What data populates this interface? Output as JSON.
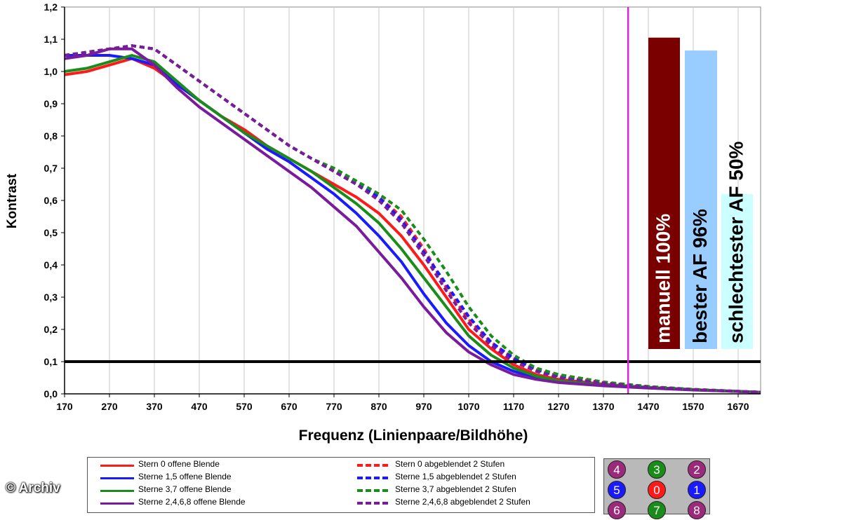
{
  "chart_data": {
    "type": "line",
    "xlabel": "Frequenz (Linienpaare/Bildhöhe)",
    "ylabel": "Kontrast",
    "xlim": [
      170,
      1720
    ],
    "ylim": [
      0,
      1.2
    ],
    "x_ticks": [
      "170",
      "270",
      "370",
      "470",
      "570",
      "670",
      "770",
      "870",
      "970",
      "1070",
      "1170",
      "1270",
      "1370",
      "1470",
      "1570",
      "1670"
    ],
    "y_ticks": [
      "0,0",
      "0,1",
      "0,2",
      "0,3",
      "0,4",
      "0,5",
      "0,6",
      "0,7",
      "0,8",
      "0,9",
      "1,0",
      "1,1",
      "1,2"
    ],
    "grid": "vertical",
    "threshold": {
      "y": 0.1,
      "color": "#000000"
    },
    "marker_line": {
      "x": 1425,
      "color": "#dd22dd"
    },
    "series": [
      {
        "name": "Stern 0 offene Blende",
        "color": "#ff1a1a",
        "style": "solid",
        "points": [
          [
            170,
            0.99
          ],
          [
            220,
            1.0
          ],
          [
            270,
            1.02
          ],
          [
            320,
            1.04
          ],
          [
            370,
            1.01
          ],
          [
            420,
            0.96
          ],
          [
            470,
            0.91
          ],
          [
            520,
            0.86
          ],
          [
            570,
            0.82
          ],
          [
            620,
            0.77
          ],
          [
            670,
            0.73
          ],
          [
            720,
            0.69
          ],
          [
            770,
            0.65
          ],
          [
            820,
            0.61
          ],
          [
            870,
            0.56
          ],
          [
            920,
            0.49
          ],
          [
            970,
            0.4
          ],
          [
            1020,
            0.3
          ],
          [
            1070,
            0.2
          ],
          [
            1120,
            0.14
          ],
          [
            1170,
            0.09
          ],
          [
            1220,
            0.06
          ],
          [
            1270,
            0.045
          ],
          [
            1370,
            0.03
          ],
          [
            1470,
            0.02
          ],
          [
            1570,
            0.013
          ],
          [
            1720,
            0.005
          ]
        ]
      },
      {
        "name": "Sterne 1,5 offene Blende",
        "color": "#1a1aff",
        "style": "solid",
        "points": [
          [
            170,
            1.05
          ],
          [
            220,
            1.05
          ],
          [
            270,
            1.05
          ],
          [
            320,
            1.04
          ],
          [
            370,
            1.02
          ],
          [
            420,
            0.96
          ],
          [
            470,
            0.91
          ],
          [
            520,
            0.86
          ],
          [
            570,
            0.81
          ],
          [
            620,
            0.76
          ],
          [
            670,
            0.72
          ],
          [
            720,
            0.67
          ],
          [
            770,
            0.62
          ],
          [
            820,
            0.56
          ],
          [
            870,
            0.49
          ],
          [
            920,
            0.41
          ],
          [
            970,
            0.31
          ],
          [
            1020,
            0.22
          ],
          [
            1070,
            0.15
          ],
          [
            1120,
            0.1
          ],
          [
            1170,
            0.07
          ],
          [
            1220,
            0.05
          ],
          [
            1270,
            0.04
          ],
          [
            1370,
            0.028
          ],
          [
            1470,
            0.02
          ],
          [
            1570,
            0.013
          ],
          [
            1720,
            0.005
          ]
        ]
      },
      {
        "name": "Sterne 3,7 offene Blende",
        "color": "#1a8c1a",
        "style": "solid",
        "points": [
          [
            170,
            1.0
          ],
          [
            220,
            1.01
          ],
          [
            270,
            1.03
          ],
          [
            320,
            1.05
          ],
          [
            370,
            1.03
          ],
          [
            420,
            0.97
          ],
          [
            470,
            0.91
          ],
          [
            520,
            0.86
          ],
          [
            570,
            0.81
          ],
          [
            620,
            0.77
          ],
          [
            670,
            0.73
          ],
          [
            720,
            0.69
          ],
          [
            770,
            0.64
          ],
          [
            820,
            0.59
          ],
          [
            870,
            0.53
          ],
          [
            920,
            0.45
          ],
          [
            970,
            0.36
          ],
          [
            1020,
            0.27
          ],
          [
            1070,
            0.18
          ],
          [
            1120,
            0.12
          ],
          [
            1170,
            0.08
          ],
          [
            1220,
            0.055
          ],
          [
            1270,
            0.04
          ],
          [
            1370,
            0.028
          ],
          [
            1470,
            0.02
          ],
          [
            1570,
            0.013
          ],
          [
            1720,
            0.005
          ]
        ]
      },
      {
        "name": "Sterne 2,4,6,8 offene Blende",
        "color": "#7a1a9c",
        "style": "solid",
        "points": [
          [
            170,
            1.04
          ],
          [
            220,
            1.05
          ],
          [
            270,
            1.07
          ],
          [
            320,
            1.07
          ],
          [
            370,
            1.02
          ],
          [
            420,
            0.95
          ],
          [
            470,
            0.89
          ],
          [
            520,
            0.84
          ],
          [
            570,
            0.79
          ],
          [
            620,
            0.74
          ],
          [
            670,
            0.69
          ],
          [
            720,
            0.64
          ],
          [
            770,
            0.58
          ],
          [
            820,
            0.52
          ],
          [
            870,
            0.44
          ],
          [
            920,
            0.36
          ],
          [
            970,
            0.27
          ],
          [
            1020,
            0.19
          ],
          [
            1070,
            0.13
          ],
          [
            1120,
            0.09
          ],
          [
            1170,
            0.06
          ],
          [
            1220,
            0.045
          ],
          [
            1270,
            0.035
          ],
          [
            1370,
            0.025
          ],
          [
            1470,
            0.018
          ],
          [
            1570,
            0.012
          ],
          [
            1720,
            0.005
          ]
        ]
      },
      {
        "name": "Stern 0 abgeblendet 2 Stufen",
        "color": "#ff1a1a",
        "style": "dashed",
        "points": [
          [
            170,
            1.05
          ],
          [
            220,
            1.06
          ],
          [
            270,
            1.07
          ],
          [
            320,
            1.08
          ],
          [
            370,
            1.07
          ],
          [
            420,
            1.02
          ],
          [
            470,
            0.97
          ],
          [
            520,
            0.92
          ],
          [
            570,
            0.87
          ],
          [
            620,
            0.82
          ],
          [
            670,
            0.77
          ],
          [
            720,
            0.73
          ],
          [
            770,
            0.69
          ],
          [
            820,
            0.65
          ],
          [
            870,
            0.61
          ],
          [
            920,
            0.55
          ],
          [
            970,
            0.45
          ],
          [
            1020,
            0.33
          ],
          [
            1070,
            0.23
          ],
          [
            1120,
            0.16
          ],
          [
            1170,
            0.11
          ],
          [
            1220,
            0.075
          ],
          [
            1270,
            0.055
          ],
          [
            1370,
            0.035
          ],
          [
            1470,
            0.022
          ],
          [
            1570,
            0.014
          ],
          [
            1720,
            0.005
          ]
        ]
      },
      {
        "name": "Sterne 1,5 abgeblendet 2 Stufen",
        "color": "#1a1aff",
        "style": "dashed",
        "points": [
          [
            170,
            1.05
          ],
          [
            220,
            1.06
          ],
          [
            270,
            1.07
          ],
          [
            320,
            1.08
          ],
          [
            370,
            1.07
          ],
          [
            420,
            1.02
          ],
          [
            470,
            0.97
          ],
          [
            520,
            0.92
          ],
          [
            570,
            0.87
          ],
          [
            620,
            0.82
          ],
          [
            670,
            0.77
          ],
          [
            720,
            0.73
          ],
          [
            770,
            0.69
          ],
          [
            820,
            0.65
          ],
          [
            870,
            0.61
          ],
          [
            920,
            0.54
          ],
          [
            970,
            0.44
          ],
          [
            1020,
            0.34
          ],
          [
            1070,
            0.24
          ],
          [
            1120,
            0.16
          ],
          [
            1170,
            0.11
          ],
          [
            1220,
            0.075
          ],
          [
            1270,
            0.055
          ],
          [
            1370,
            0.035
          ],
          [
            1470,
            0.022
          ],
          [
            1570,
            0.014
          ],
          [
            1720,
            0.005
          ]
        ]
      },
      {
        "name": "Sterne 3,7 abgeblendet 2 Stufen",
        "color": "#1a8c1a",
        "style": "dashed",
        "points": [
          [
            170,
            1.05
          ],
          [
            220,
            1.06
          ],
          [
            270,
            1.07
          ],
          [
            320,
            1.08
          ],
          [
            370,
            1.07
          ],
          [
            420,
            1.02
          ],
          [
            470,
            0.97
          ],
          [
            520,
            0.92
          ],
          [
            570,
            0.87
          ],
          [
            620,
            0.82
          ],
          [
            670,
            0.77
          ],
          [
            720,
            0.73
          ],
          [
            770,
            0.7
          ],
          [
            820,
            0.66
          ],
          [
            870,
            0.62
          ],
          [
            920,
            0.57
          ],
          [
            970,
            0.48
          ],
          [
            1020,
            0.38
          ],
          [
            1070,
            0.27
          ],
          [
            1120,
            0.18
          ],
          [
            1170,
            0.12
          ],
          [
            1220,
            0.08
          ],
          [
            1270,
            0.06
          ],
          [
            1370,
            0.037
          ],
          [
            1470,
            0.023
          ],
          [
            1570,
            0.014
          ],
          [
            1720,
            0.005
          ]
        ]
      },
      {
        "name": "Sterne 2,4,6,8 abgeblendet 2 Stufen",
        "color": "#7a1a9c",
        "style": "dashed",
        "points": [
          [
            170,
            1.05
          ],
          [
            220,
            1.06
          ],
          [
            270,
            1.07
          ],
          [
            320,
            1.08
          ],
          [
            370,
            1.07
          ],
          [
            420,
            1.02
          ],
          [
            470,
            0.97
          ],
          [
            520,
            0.92
          ],
          [
            570,
            0.87
          ],
          [
            620,
            0.82
          ],
          [
            670,
            0.77
          ],
          [
            720,
            0.73
          ],
          [
            770,
            0.69
          ],
          [
            820,
            0.65
          ],
          [
            870,
            0.6
          ],
          [
            920,
            0.53
          ],
          [
            970,
            0.43
          ],
          [
            1020,
            0.32
          ],
          [
            1070,
            0.22
          ],
          [
            1120,
            0.15
          ],
          [
            1170,
            0.1
          ],
          [
            1220,
            0.07
          ],
          [
            1270,
            0.05
          ],
          [
            1370,
            0.033
          ],
          [
            1470,
            0.021
          ],
          [
            1570,
            0.013
          ],
          [
            1720,
            0.005
          ]
        ]
      }
    ],
    "annotation_bars": [
      {
        "label": "manuell 100%",
        "value": 1.105,
        "fill": "#7a0000",
        "text_color": "#ffffff"
      },
      {
        "label": "bester AF 96%",
        "value": 1.065,
        "fill": "#99ccff",
        "text_color": "#000000"
      },
      {
        "label": "schlechtester AF 50%",
        "value": 0.62,
        "fill": "#ccffff",
        "text_color": "#000000"
      }
    ]
  },
  "legend": [
    {
      "label": "Stern 0 offene Blende",
      "color": "#ff1a1a",
      "style": "solid"
    },
    {
      "label": "Sterne 1,5 offene Blende",
      "color": "#1a1aff",
      "style": "solid"
    },
    {
      "label": "Sterne 3,7 offene Blende",
      "color": "#1a8c1a",
      "style": "solid"
    },
    {
      "label": "Sterne 2,4,6,8 offene Blende",
      "color": "#7a1a9c",
      "style": "solid"
    },
    {
      "label": "Stern 0 abgeblendet 2 Stufen",
      "color": "#ff1a1a",
      "style": "dashed"
    },
    {
      "label": "Sterne 1,5 abgeblendet 2 Stufen",
      "color": "#1a1aff",
      "style": "dashed"
    },
    {
      "label": "Sterne 3,7 abgeblendet 2 Stufen",
      "color": "#1a8c1a",
      "style": "dashed"
    },
    {
      "label": "Sterne 2,4,6,8 abgeblendet 2 Stufen",
      "color": "#7a1a9c",
      "style": "dashed"
    }
  ],
  "star_key": [
    {
      "label": "4",
      "color": "#9c2a7a"
    },
    {
      "label": "3",
      "color": "#1a8c1a"
    },
    {
      "label": "2",
      "color": "#9c2a7a"
    },
    {
      "label": "5",
      "color": "#1a1aff"
    },
    {
      "label": "0",
      "color": "#ff1a1a"
    },
    {
      "label": "1",
      "color": "#1a1aff"
    },
    {
      "label": "6",
      "color": "#9c2a7a"
    },
    {
      "label": "7",
      "color": "#1a8c1a"
    },
    {
      "label": "8",
      "color": "#9c2a7a"
    }
  ],
  "copyright": "© Archiv"
}
